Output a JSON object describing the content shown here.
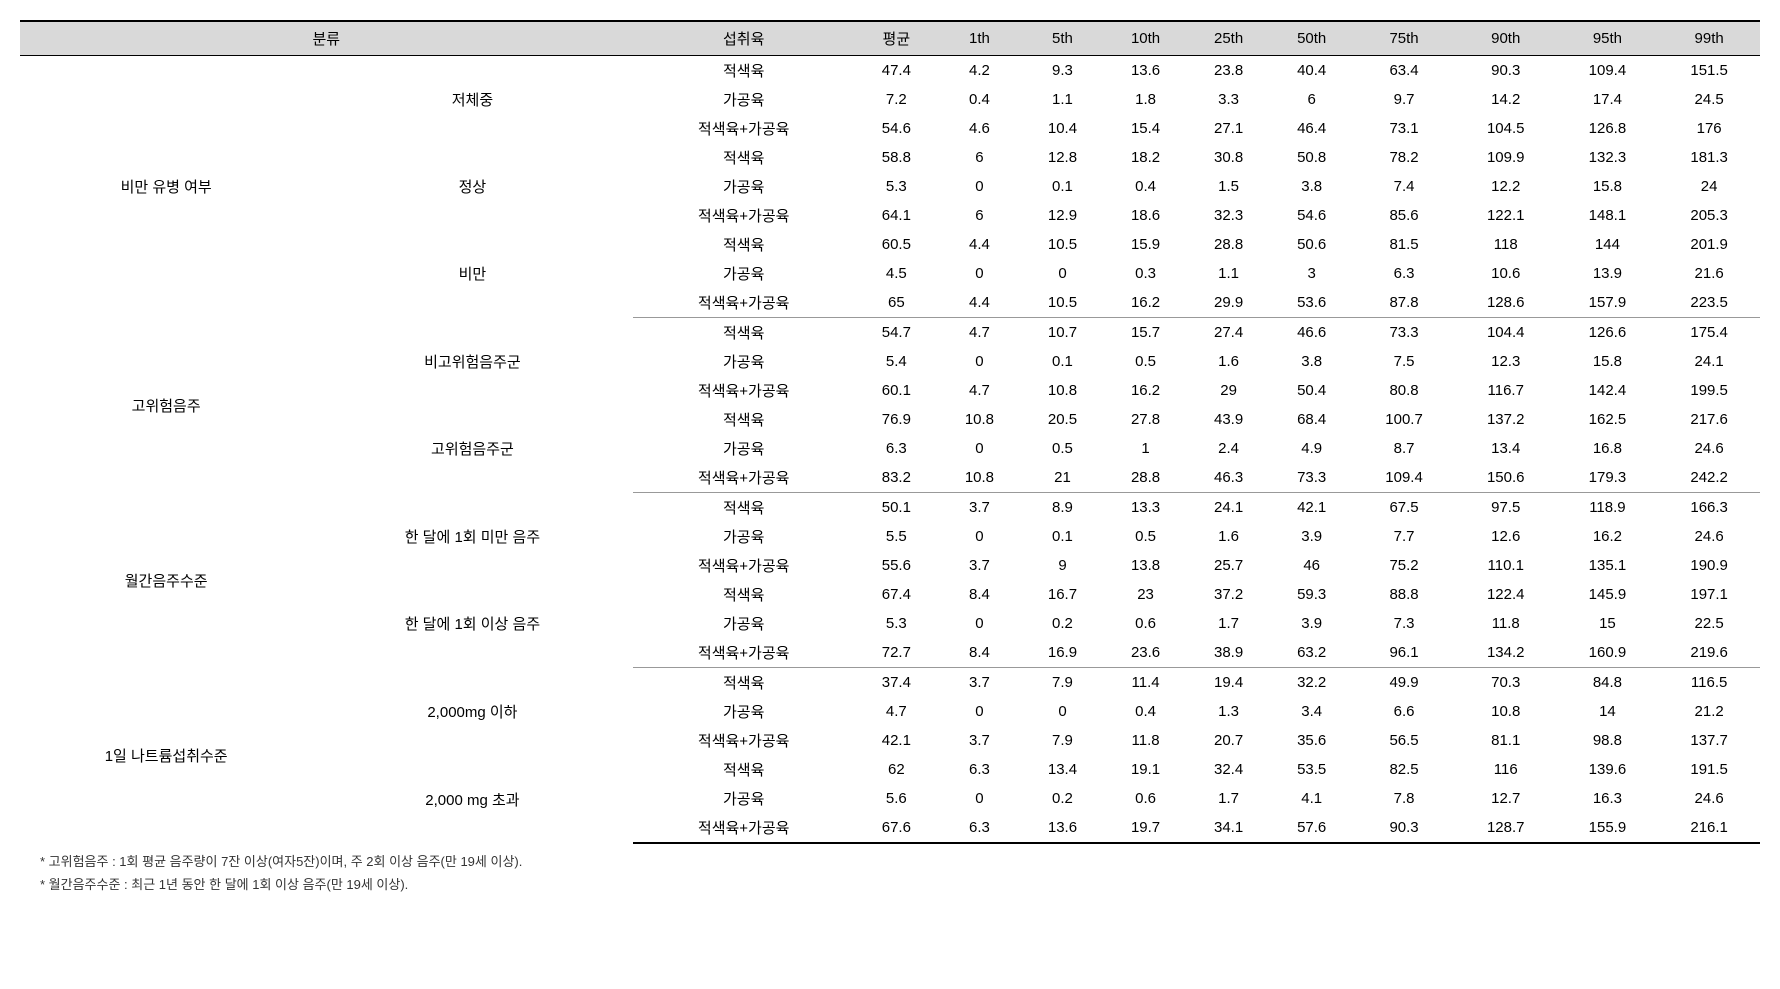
{
  "headers": {
    "category": "분류",
    "meat_type": "섭취육",
    "mean": "평균",
    "p1": "1th",
    "p5": "5th",
    "p10": "10th",
    "p25": "25th",
    "p50": "50th",
    "p75": "75th",
    "p90": "90th",
    "p95": "95th",
    "p99": "99th"
  },
  "meat_labels": {
    "red": "적색육",
    "processed": "가공육",
    "combined": "적색육+가공육"
  },
  "categories": [
    {
      "name": "비만 유병 여부",
      "subgroups": [
        {
          "name": "저체중",
          "rows": [
            {
              "meat": "red",
              "values": [
                "47.4",
                "4.2",
                "9.3",
                "13.6",
                "23.8",
                "40.4",
                "63.4",
                "90.3",
                "109.4",
                "151.5"
              ]
            },
            {
              "meat": "processed",
              "values": [
                "7.2",
                "0.4",
                "1.1",
                "1.8",
                "3.3",
                "6",
                "9.7",
                "14.2",
                "17.4",
                "24.5"
              ]
            },
            {
              "meat": "combined",
              "values": [
                "54.6",
                "4.6",
                "10.4",
                "15.4",
                "27.1",
                "46.4",
                "73.1",
                "104.5",
                "126.8",
                "176"
              ]
            }
          ]
        },
        {
          "name": "정상",
          "rows": [
            {
              "meat": "red",
              "values": [
                "58.8",
                "6",
                "12.8",
                "18.2",
                "30.8",
                "50.8",
                "78.2",
                "109.9",
                "132.3",
                "181.3"
              ]
            },
            {
              "meat": "processed",
              "values": [
                "5.3",
                "0",
                "0.1",
                "0.4",
                "1.5",
                "3.8",
                "7.4",
                "12.2",
                "15.8",
                "24"
              ]
            },
            {
              "meat": "combined",
              "values": [
                "64.1",
                "6",
                "12.9",
                "18.6",
                "32.3",
                "54.6",
                "85.6",
                "122.1",
                "148.1",
                "205.3"
              ]
            }
          ]
        },
        {
          "name": "비만",
          "rows": [
            {
              "meat": "red",
              "values": [
                "60.5",
                "4.4",
                "10.5",
                "15.9",
                "28.8",
                "50.6",
                "81.5",
                "118",
                "144",
                "201.9"
              ]
            },
            {
              "meat": "processed",
              "values": [
                "4.5",
                "0",
                "0",
                "0.3",
                "1.1",
                "3",
                "6.3",
                "10.6",
                "13.9",
                "21.6"
              ]
            },
            {
              "meat": "combined",
              "values": [
                "65",
                "4.4",
                "10.5",
                "16.2",
                "29.9",
                "53.6",
                "87.8",
                "128.6",
                "157.9",
                "223.5"
              ]
            }
          ]
        }
      ]
    },
    {
      "name": "고위험음주",
      "subgroups": [
        {
          "name": "비고위험음주군",
          "rows": [
            {
              "meat": "red",
              "values": [
                "54.7",
                "4.7",
                "10.7",
                "15.7",
                "27.4",
                "46.6",
                "73.3",
                "104.4",
                "126.6",
                "175.4"
              ]
            },
            {
              "meat": "processed",
              "values": [
                "5.4",
                "0",
                "0.1",
                "0.5",
                "1.6",
                "3.8",
                "7.5",
                "12.3",
                "15.8",
                "24.1"
              ]
            },
            {
              "meat": "combined",
              "values": [
                "60.1",
                "4.7",
                "10.8",
                "16.2",
                "29",
                "50.4",
                "80.8",
                "116.7",
                "142.4",
                "199.5"
              ]
            }
          ]
        },
        {
          "name": "고위험음주군",
          "rows": [
            {
              "meat": "red",
              "values": [
                "76.9",
                "10.8",
                "20.5",
                "27.8",
                "43.9",
                "68.4",
                "100.7",
                "137.2",
                "162.5",
                "217.6"
              ]
            },
            {
              "meat": "processed",
              "values": [
                "6.3",
                "0",
                "0.5",
                "1",
                "2.4",
                "4.9",
                "8.7",
                "13.4",
                "16.8",
                "24.6"
              ]
            },
            {
              "meat": "combined",
              "values": [
                "83.2",
                "10.8",
                "21",
                "28.8",
                "46.3",
                "73.3",
                "109.4",
                "150.6",
                "179.3",
                "242.2"
              ]
            }
          ]
        }
      ]
    },
    {
      "name": "월간음주수준",
      "subgroups": [
        {
          "name": "한 달에 1회 미만 음주",
          "rows": [
            {
              "meat": "red",
              "values": [
                "50.1",
                "3.7",
                "8.9",
                "13.3",
                "24.1",
                "42.1",
                "67.5",
                "97.5",
                "118.9",
                "166.3"
              ]
            },
            {
              "meat": "processed",
              "values": [
                "5.5",
                "0",
                "0.1",
                "0.5",
                "1.6",
                "3.9",
                "7.7",
                "12.6",
                "16.2",
                "24.6"
              ]
            },
            {
              "meat": "combined",
              "values": [
                "55.6",
                "3.7",
                "9",
                "13.8",
                "25.7",
                "46",
                "75.2",
                "110.1",
                "135.1",
                "190.9"
              ]
            }
          ]
        },
        {
          "name": "한 달에 1회 이상 음주",
          "rows": [
            {
              "meat": "red",
              "values": [
                "67.4",
                "8.4",
                "16.7",
                "23",
                "37.2",
                "59.3",
                "88.8",
                "122.4",
                "145.9",
                "197.1"
              ]
            },
            {
              "meat": "processed",
              "values": [
                "5.3",
                "0",
                "0.2",
                "0.6",
                "1.7",
                "3.9",
                "7.3",
                "11.8",
                "15",
                "22.5"
              ]
            },
            {
              "meat": "combined",
              "values": [
                "72.7",
                "8.4",
                "16.9",
                "23.6",
                "38.9",
                "63.2",
                "96.1",
                "134.2",
                "160.9",
                "219.6"
              ]
            }
          ]
        }
      ]
    },
    {
      "name": "1일 나트륨섭취수준",
      "subgroups": [
        {
          "name": "2,000mg 이하",
          "rows": [
            {
              "meat": "red",
              "values": [
                "37.4",
                "3.7",
                "7.9",
                "11.4",
                "19.4",
                "32.2",
                "49.9",
                "70.3",
                "84.8",
                "116.5"
              ]
            },
            {
              "meat": "processed",
              "values": [
                "4.7",
                "0",
                "0",
                "0.4",
                "1.3",
                "3.4",
                "6.6",
                "10.8",
                "14",
                "21.2"
              ]
            },
            {
              "meat": "combined",
              "values": [
                "42.1",
                "3.7",
                "7.9",
                "11.8",
                "20.7",
                "35.6",
                "56.5",
                "81.1",
                "98.8",
                "137.7"
              ]
            }
          ]
        },
        {
          "name": "2,000 mg 초과",
          "rows": [
            {
              "meat": "red",
              "values": [
                "62",
                "6.3",
                "13.4",
                "19.1",
                "32.4",
                "53.5",
                "82.5",
                "116",
                "139.6",
                "191.5"
              ]
            },
            {
              "meat": "processed",
              "values": [
                "5.6",
                "0",
                "0.2",
                "0.6",
                "1.7",
                "4.1",
                "7.8",
                "12.7",
                "16.3",
                "24.6"
              ]
            },
            {
              "meat": "combined",
              "values": [
                "67.6",
                "6.3",
                "13.6",
                "19.7",
                "34.1",
                "57.6",
                "90.3",
                "128.7",
                "155.9",
                "216.1"
              ]
            }
          ]
        }
      ]
    }
  ],
  "footnotes": [
    "* 고위험음주 : 1회 평균 음주량이 7잔 이상(여자5잔)이며, 주 2회 이상 음주(만 19세 이상).",
    "* 월간음주수준 : 최근 1년 동안 한 달에 1회 이상 음주(만 19세 이상)."
  ]
}
